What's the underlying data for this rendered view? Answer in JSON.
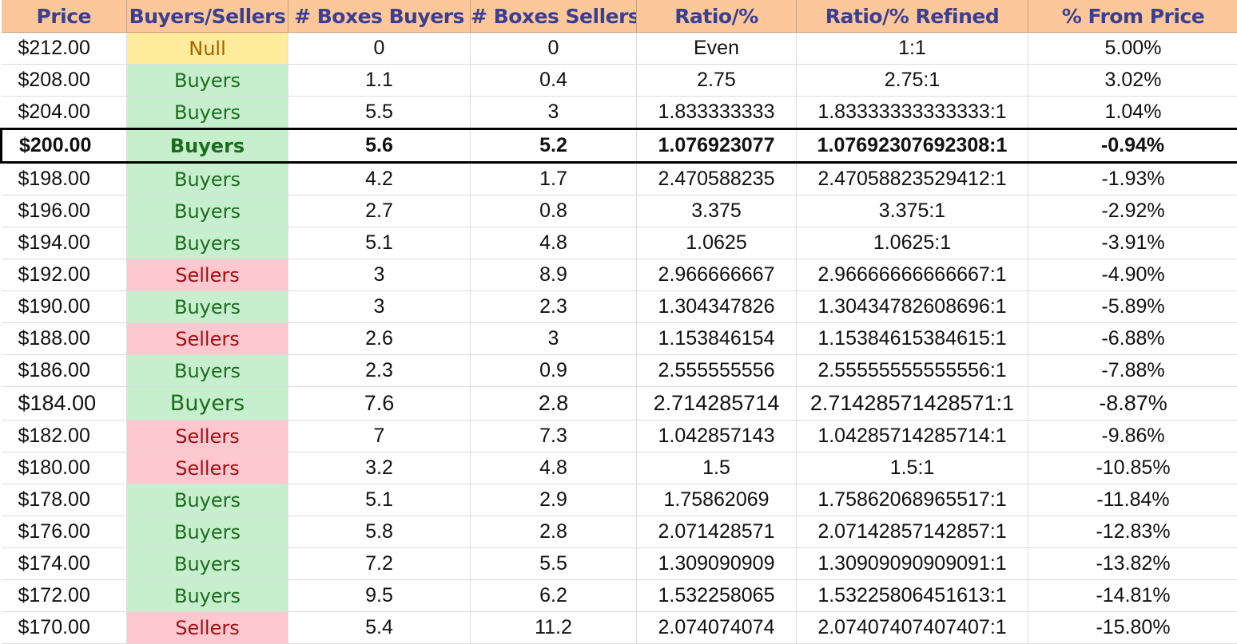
{
  "headers": [
    "Price",
    "Buyers/Sellers",
    "# Boxes Buyers",
    "# Boxes Sellers",
    "Ratio/%",
    "Ratio/% Refined",
    "% From Price"
  ],
  "highlight_row_index": 3,
  "larger_text_row_index": 11,
  "colors": {
    "header_bg": "#fcc79a",
    "header_text": "#3b3f8f",
    "buyers_bg": "#c6efce",
    "buyers_text": "#1f6b1f",
    "sellers_bg": "#ffc7ce",
    "sellers_text": "#9c1016",
    "null_bg": "#ffeb9c",
    "null_text": "#9c6500"
  },
  "rows": [
    [
      "$212.00",
      "Null",
      "0",
      "0",
      "Even",
      "1:1",
      "5.00%"
    ],
    [
      "$208.00",
      "Buyers",
      "1.1",
      "0.4",
      "2.75",
      "2.75:1",
      "3.02%"
    ],
    [
      "$204.00",
      "Buyers",
      "5.5",
      "3",
      "1.833333333",
      "1.83333333333333:1",
      "1.04%"
    ],
    [
      "$200.00",
      "Buyers",
      "5.6",
      "5.2",
      "1.076923077",
      "1.07692307692308:1",
      "-0.94%"
    ],
    [
      "$198.00",
      "Buyers",
      "4.2",
      "1.7",
      "2.470588235",
      "2.47058823529412:1",
      "-1.93%"
    ],
    [
      "$196.00",
      "Buyers",
      "2.7",
      "0.8",
      "3.375",
      "3.375:1",
      "-2.92%"
    ],
    [
      "$194.00",
      "Buyers",
      "5.1",
      "4.8",
      "1.0625",
      "1.0625:1",
      "-3.91%"
    ],
    [
      "$192.00",
      "Sellers",
      "3",
      "8.9",
      "2.966666667",
      "2.96666666666667:1",
      "-4.90%"
    ],
    [
      "$190.00",
      "Buyers",
      "3",
      "2.3",
      "1.304347826",
      "1.30434782608696:1",
      "-5.89%"
    ],
    [
      "$188.00",
      "Sellers",
      "2.6",
      "3",
      "1.153846154",
      "1.15384615384615:1",
      "-6.88%"
    ],
    [
      "$186.00",
      "Buyers",
      "2.3",
      "0.9",
      "2.555555556",
      "2.55555555555556:1",
      "-7.88%"
    ],
    [
      "$184.00",
      "Buyers",
      "7.6",
      "2.8",
      "2.714285714",
      "2.71428571428571:1",
      "-8.87%"
    ],
    [
      "$182.00",
      "Sellers",
      "7",
      "7.3",
      "1.042857143",
      "1.04285714285714:1",
      "-9.86%"
    ],
    [
      "$180.00",
      "Sellers",
      "3.2",
      "4.8",
      "1.5",
      "1.5:1",
      "-10.85%"
    ],
    [
      "$178.00",
      "Buyers",
      "5.1",
      "2.9",
      "1.75862069",
      "1.75862068965517:1",
      "-11.84%"
    ],
    [
      "$176.00",
      "Buyers",
      "5.8",
      "2.8",
      "2.071428571",
      "2.07142857142857:1",
      "-12.83%"
    ],
    [
      "$174.00",
      "Buyers",
      "7.2",
      "5.5",
      "1.309090909",
      "1.30909090909091:1",
      "-13.82%"
    ],
    [
      "$172.00",
      "Buyers",
      "9.5",
      "6.2",
      "1.532258065",
      "1.53225806451613:1",
      "-14.81%"
    ],
    [
      "$170.00",
      "Sellers",
      "5.4",
      "11.2",
      "2.074074074",
      "2.07407407407407:1",
      "-15.80%"
    ]
  ]
}
